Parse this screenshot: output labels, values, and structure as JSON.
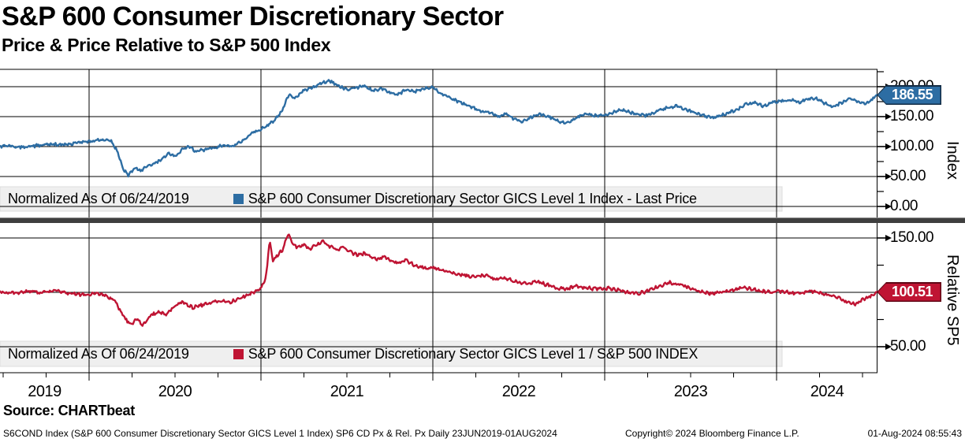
{
  "header": {
    "title": "S&P 600 Consumer Discretionary Sector",
    "subtitle": "Price & Price Relative to S&P 500 Index"
  },
  "xaxis": {
    "years": [
      "2019",
      "2020",
      "2021",
      "2022",
      "2023",
      "2024"
    ]
  },
  "source_label": "Source: CHARTbeat",
  "footer": {
    "left": "S6COND Index (S&P 600 Consumer Discretionary Sector GICS Level 1 Index) SP6 CD Px & Rel. Px  Daily 23JUN2019-01AUG2024",
    "center": "Copyright© 2024 Bloomberg Finance L.P.",
    "right": "01-Aug-2024 08:55:43"
  },
  "chart_data": [
    {
      "type": "line",
      "panel": "top",
      "name": "S&P 600 Consumer Discretionary Sector GICS Level 1 Index - Last Price",
      "legend_prefix": "Normalized As Of 06/24/2019",
      "axis_title": "Index",
      "color": "#2d6da3",
      "badge_border": "#132c44",
      "last_value": 186.55,
      "last_value_label": "186.55",
      "yticks": [
        0,
        50,
        100,
        150,
        200
      ],
      "ylim": [
        -18,
        229
      ],
      "x_range": [
        "23JUN2019",
        "01AUG2024"
      ],
      "points": [
        [
          2019.48,
          100
        ],
        [
          2019.55,
          101
        ],
        [
          2019.62,
          99
        ],
        [
          2019.7,
          102
        ],
        [
          2019.78,
          104
        ],
        [
          2019.85,
          103
        ],
        [
          2019.92,
          106
        ],
        [
          2020,
          108
        ],
        [
          2020.06,
          111
        ],
        [
          2020.12,
          112
        ],
        [
          2020.16,
          95
        ],
        [
          2020.2,
          62
        ],
        [
          2020.23,
          52
        ],
        [
          2020.27,
          65
        ],
        [
          2020.3,
          58
        ],
        [
          2020.34,
          68
        ],
        [
          2020.4,
          74
        ],
        [
          2020.46,
          88
        ],
        [
          2020.5,
          84
        ],
        [
          2020.54,
          95
        ],
        [
          2020.58,
          100
        ],
        [
          2020.62,
          92
        ],
        [
          2020.67,
          94
        ],
        [
          2020.72,
          98
        ],
        [
          2020.78,
          102
        ],
        [
          2020.84,
          100
        ],
        [
          2020.9,
          112
        ],
        [
          2020.96,
          124
        ],
        [
          2021.02,
          132
        ],
        [
          2021.08,
          144
        ],
        [
          2021.12,
          158
        ],
        [
          2021.16,
          186
        ],
        [
          2021.2,
          180
        ],
        [
          2021.24,
          193
        ],
        [
          2021.3,
          198
        ],
        [
          2021.35,
          206
        ],
        [
          2021.4,
          210
        ],
        [
          2021.44,
          203
        ],
        [
          2021.5,
          195
        ],
        [
          2021.55,
          198
        ],
        [
          2021.6,
          202
        ],
        [
          2021.65,
          193
        ],
        [
          2021.7,
          197
        ],
        [
          2021.75,
          190
        ],
        [
          2021.8,
          187
        ],
        [
          2021.85,
          196
        ],
        [
          2021.9,
          192
        ],
        [
          2021.96,
          198
        ],
        [
          2022,
          199
        ],
        [
          2022.04,
          189
        ],
        [
          2022.1,
          181
        ],
        [
          2022.16,
          174
        ],
        [
          2022.22,
          167
        ],
        [
          2022.28,
          159
        ],
        [
          2022.33,
          157
        ],
        [
          2022.38,
          150
        ],
        [
          2022.42,
          155
        ],
        [
          2022.47,
          147
        ],
        [
          2022.52,
          141
        ],
        [
          2022.57,
          149
        ],
        [
          2022.62,
          155
        ],
        [
          2022.68,
          149
        ],
        [
          2022.73,
          143
        ],
        [
          2022.78,
          139
        ],
        [
          2022.84,
          149
        ],
        [
          2022.89,
          155
        ],
        [
          2022.95,
          151
        ],
        [
          2023,
          152
        ],
        [
          2023.06,
          159
        ],
        [
          2023.12,
          161
        ],
        [
          2023.18,
          154
        ],
        [
          2023.24,
          152
        ],
        [
          2023.3,
          159
        ],
        [
          2023.36,
          164
        ],
        [
          2023.42,
          168
        ],
        [
          2023.47,
          162
        ],
        [
          2023.53,
          156
        ],
        [
          2023.58,
          151
        ],
        [
          2023.63,
          148
        ],
        [
          2023.7,
          154
        ],
        [
          2023.76,
          161
        ],
        [
          2023.82,
          170
        ],
        [
          2023.87,
          173
        ],
        [
          2023.92,
          168
        ],
        [
          2023.97,
          173
        ],
        [
          2024.03,
          176
        ],
        [
          2024.08,
          179
        ],
        [
          2024.13,
          174
        ],
        [
          2024.18,
          179
        ],
        [
          2024.23,
          181
        ],
        [
          2024.28,
          172
        ],
        [
          2024.33,
          166
        ],
        [
          2024.38,
          174
        ],
        [
          2024.43,
          179
        ],
        [
          2024.48,
          175
        ],
        [
          2024.52,
          171
        ],
        [
          2024.56,
          179
        ],
        [
          2024.585,
          186.55
        ]
      ]
    },
    {
      "type": "line",
      "panel": "bottom",
      "name": "S&P 600 Consumer Discretionary Sector GICS Level 1 / S&P 500 INDEX",
      "legend_prefix": "Normalized As Of 06/24/2019",
      "axis_title": "Relative SP5",
      "color": "#bf1433",
      "badge_border": "#5f0716",
      "last_value": 100.51,
      "last_value_label": "100.51",
      "yticks": [
        50,
        100,
        150
      ],
      "ylim": [
        26,
        164
      ],
      "x_range": [
        "23JUN2019",
        "01AUG2024"
      ],
      "points": [
        [
          2019.48,
          100
        ],
        [
          2019.56,
          99
        ],
        [
          2019.64,
          101
        ],
        [
          2019.72,
          100
        ],
        [
          2019.8,
          102
        ],
        [
          2019.88,
          99
        ],
        [
          2019.96,
          98
        ],
        [
          2020.04,
          99
        ],
        [
          2020.1,
          97
        ],
        [
          2020.15,
          92
        ],
        [
          2020.2,
          78
        ],
        [
          2020.24,
          70
        ],
        [
          2020.28,
          76
        ],
        [
          2020.31,
          69
        ],
        [
          2020.35,
          78
        ],
        [
          2020.4,
          82
        ],
        [
          2020.45,
          80
        ],
        [
          2020.5,
          88
        ],
        [
          2020.55,
          91
        ],
        [
          2020.6,
          86
        ],
        [
          2020.65,
          88
        ],
        [
          2020.7,
          90
        ],
        [
          2020.76,
          92
        ],
        [
          2020.82,
          91
        ],
        [
          2020.88,
          95
        ],
        [
          2020.94,
          99
        ],
        [
          2021,
          103
        ],
        [
          2021.03,
          115
        ],
        [
          2021.05,
          148
        ],
        [
          2021.07,
          128
        ],
        [
          2021.1,
          135
        ],
        [
          2021.13,
          140
        ],
        [
          2021.16,
          155
        ],
        [
          2021.18,
          146
        ],
        [
          2021.21,
          141
        ],
        [
          2021.25,
          144
        ],
        [
          2021.28,
          140
        ],
        [
          2021.32,
          143
        ],
        [
          2021.36,
          147
        ],
        [
          2021.4,
          142
        ],
        [
          2021.44,
          139
        ],
        [
          2021.48,
          142
        ],
        [
          2021.52,
          137
        ],
        [
          2021.56,
          134
        ],
        [
          2021.6,
          136
        ],
        [
          2021.64,
          132
        ],
        [
          2021.68,
          130
        ],
        [
          2021.72,
          133
        ],
        [
          2021.76,
          129
        ],
        [
          2021.8,
          127
        ],
        [
          2021.84,
          130
        ],
        [
          2021.88,
          126
        ],
        [
          2021.92,
          124
        ],
        [
          2021.96,
          122
        ],
        [
          2022,
          123
        ],
        [
          2022.06,
          120
        ],
        [
          2022.12,
          118
        ],
        [
          2022.18,
          116
        ],
        [
          2022.24,
          114
        ],
        [
          2022.3,
          116
        ],
        [
          2022.36,
          112
        ],
        [
          2022.42,
          113
        ],
        [
          2022.48,
          110
        ],
        [
          2022.54,
          108
        ],
        [
          2022.6,
          110
        ],
        [
          2022.66,
          107
        ],
        [
          2022.72,
          104
        ],
        [
          2022.78,
          103
        ],
        [
          2022.84,
          106
        ],
        [
          2022.9,
          104
        ],
        [
          2022.96,
          103
        ],
        [
          2023.02,
          104
        ],
        [
          2023.08,
          102
        ],
        [
          2023.14,
          100
        ],
        [
          2023.2,
          99
        ],
        [
          2023.26,
          102
        ],
        [
          2023.32,
          106
        ],
        [
          2023.38,
          109
        ],
        [
          2023.44,
          107
        ],
        [
          2023.5,
          104
        ],
        [
          2023.56,
          101
        ],
        [
          2023.62,
          99
        ],
        [
          2023.68,
          100
        ],
        [
          2023.74,
          102
        ],
        [
          2023.8,
          104
        ],
        [
          2023.86,
          103
        ],
        [
          2023.92,
          101
        ],
        [
          2023.98,
          100
        ],
        [
          2024.04,
          101
        ],
        [
          2024.1,
          99
        ],
        [
          2024.16,
          100
        ],
        [
          2024.22,
          101
        ],
        [
          2024.28,
          98
        ],
        [
          2024.34,
          96
        ],
        [
          2024.4,
          92
        ],
        [
          2024.46,
          89
        ],
        [
          2024.5,
          93
        ],
        [
          2024.54,
          96
        ],
        [
          2024.585,
          100.51
        ]
      ]
    }
  ]
}
